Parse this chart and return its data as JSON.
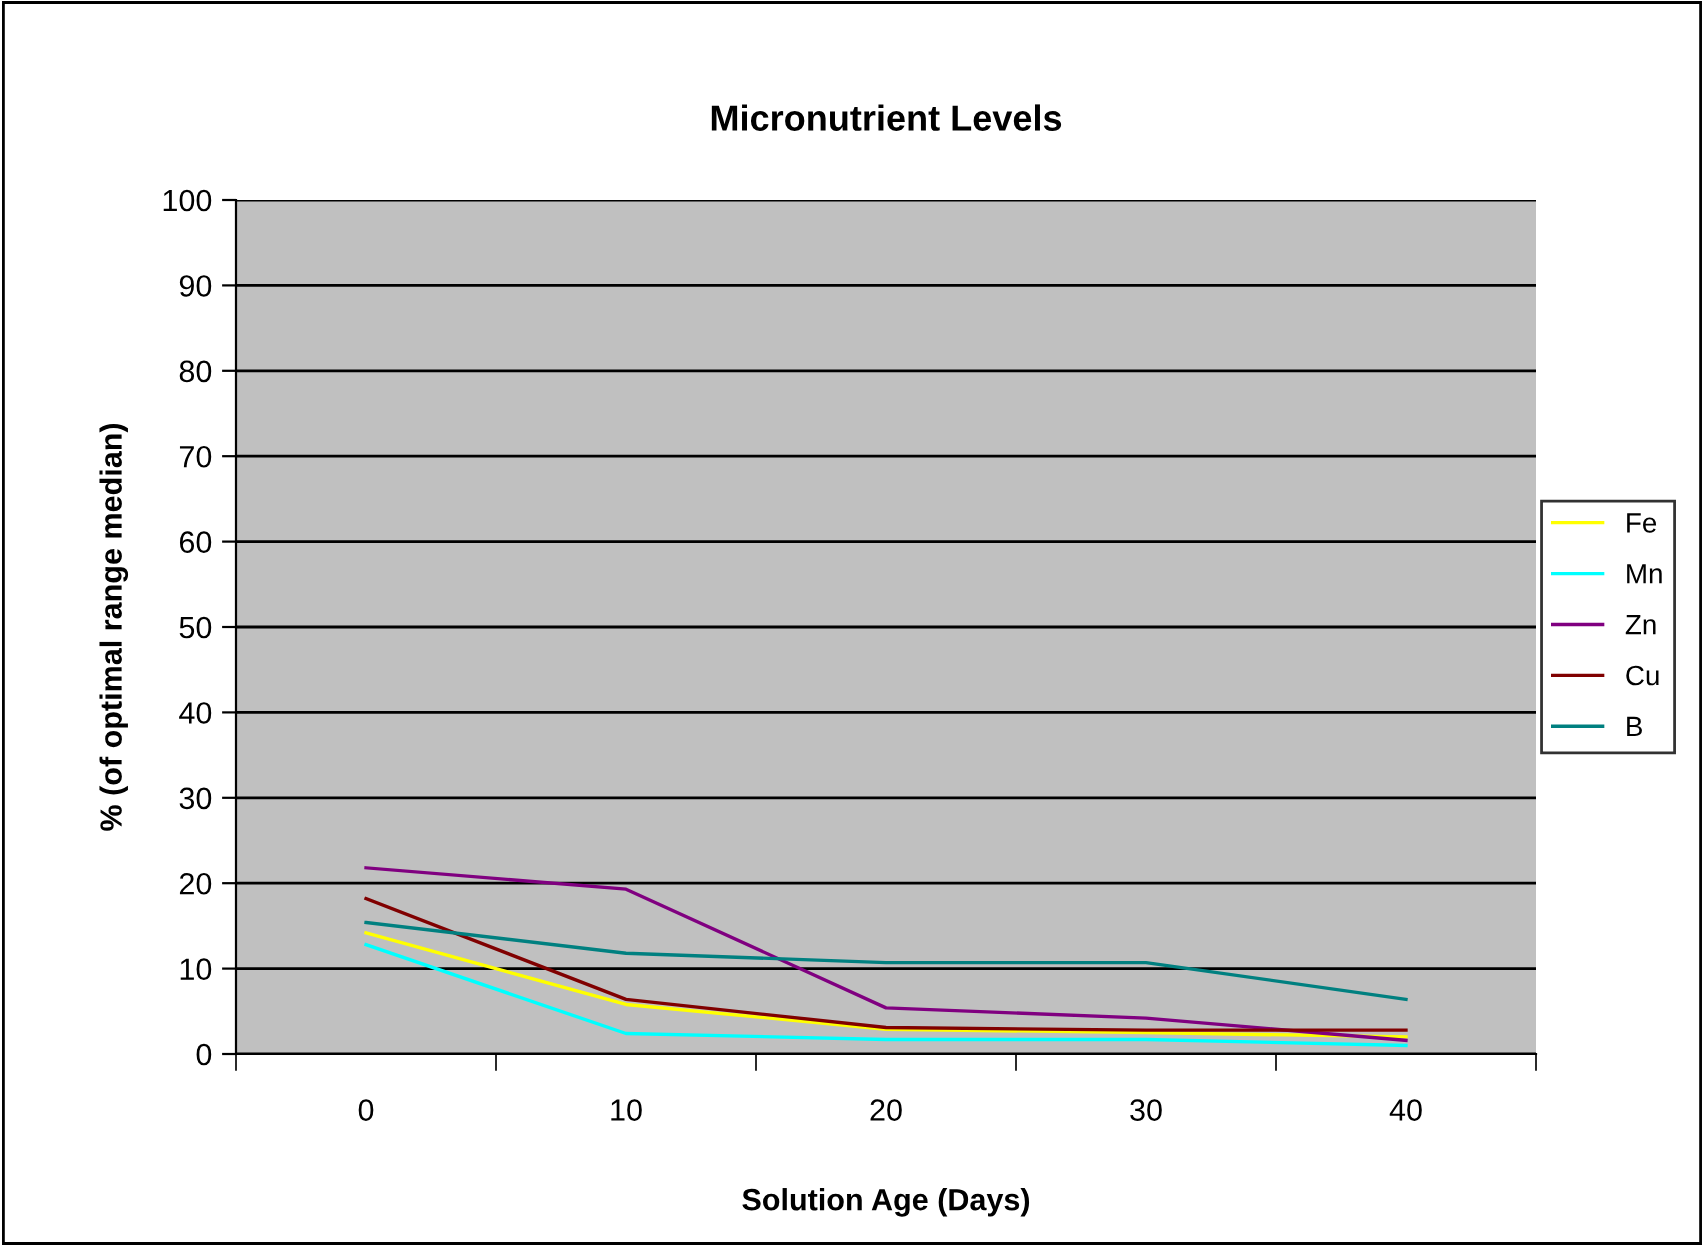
{
  "chart_data": {
    "type": "line",
    "title": "Micronutrient Levels",
    "xlabel": "Solution Age (Days)",
    "ylabel": "% (of optimal range median)",
    "categories": [
      "0",
      "10",
      "20",
      "30",
      "40"
    ],
    "series": [
      {
        "name": "Fe",
        "color": "#ffff00",
        "values": [
          14.2,
          5.8,
          2.9,
          2.5,
          2.0
        ]
      },
      {
        "name": "Mn",
        "color": "#00ffff",
        "values": [
          12.8,
          2.4,
          1.7,
          1.7,
          1.0
        ]
      },
      {
        "name": "Zn",
        "color": "#800080",
        "values": [
          21.8,
          19.3,
          5.4,
          4.2,
          1.6
        ]
      },
      {
        "name": "Cu",
        "color": "#800000",
        "values": [
          18.2,
          6.4,
          3.1,
          2.8,
          2.8
        ]
      },
      {
        "name": "B",
        "color": "#008080",
        "values": [
          15.4,
          11.8,
          10.7,
          10.7,
          6.4
        ]
      }
    ],
    "ylim": [
      0,
      100
    ],
    "yticks": [
      0,
      10,
      20,
      30,
      40,
      50,
      60,
      70,
      80,
      90,
      100
    ],
    "grid": "y",
    "legend": "right",
    "marker": "none",
    "line_style": "solid"
  }
}
